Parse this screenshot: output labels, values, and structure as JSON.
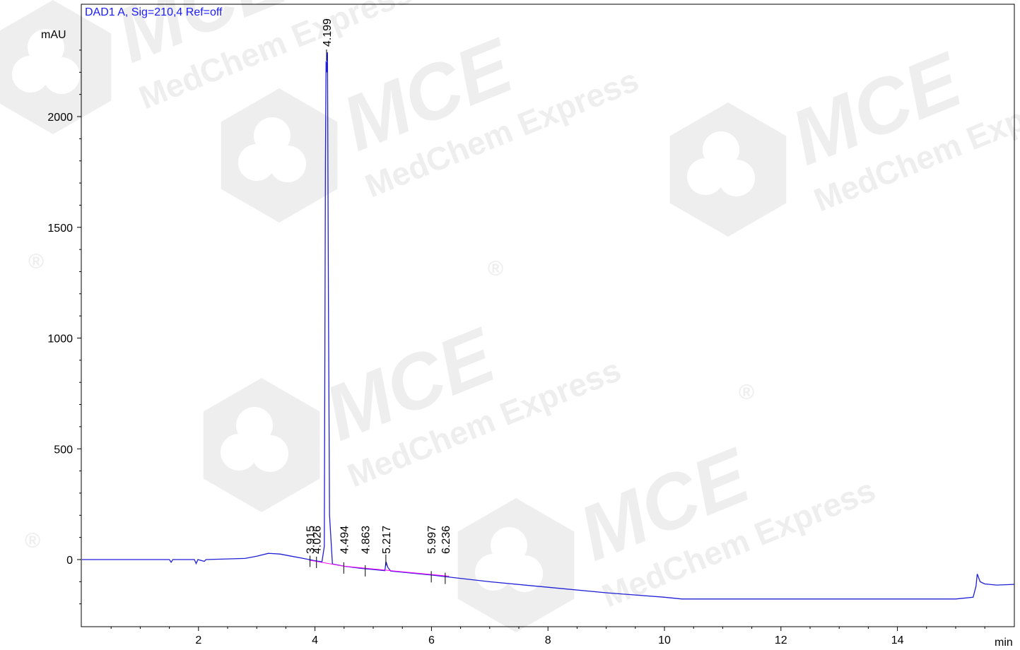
{
  "chart_data": {
    "type": "line",
    "title": "DAD1 A, Sig=210,4 Ref=off",
    "ylabel": "mAU",
    "xlabel": "min",
    "xlim": [
      0,
      16
    ],
    "ylim": [
      -300,
      2400
    ],
    "x_ticks": [
      2,
      4,
      6,
      8,
      10,
      12,
      14
    ],
    "y_ticks": [
      0,
      500,
      1000,
      1500,
      2000
    ],
    "x_tick_labels": [
      "2",
      "4",
      "6",
      "8",
      "10",
      "12",
      "14"
    ],
    "y_tick_labels": [
      "0",
      "500",
      "1000",
      "1500",
      "2000"
    ],
    "grid": false,
    "legend": "none",
    "colors": {
      "signal": "#1f1fd6",
      "baseline": "#ff00ff",
      "title": "#1a1aff",
      "axis": "#000000"
    },
    "series": [
      {
        "values_by_x": [
          [
            0.0,
            0
          ],
          [
            1.5,
            0
          ],
          [
            1.53,
            -12
          ],
          [
            1.56,
            0
          ],
          [
            1.93,
            0
          ],
          [
            1.96,
            -18
          ],
          [
            1.99,
            0
          ],
          [
            2.1,
            -8
          ],
          [
            2.13,
            0
          ],
          [
            2.8,
            5
          ],
          [
            3.0,
            15
          ],
          [
            3.2,
            28
          ],
          [
            3.4,
            25
          ],
          [
            3.6,
            15
          ],
          [
            3.8,
            5
          ],
          [
            4.0,
            -5
          ],
          [
            4.12,
            -10
          ],
          [
            4.16,
            60
          ],
          [
            4.18,
            1800
          ],
          [
            4.19,
            2250
          ],
          [
            4.205,
            2200
          ],
          [
            4.215,
            2290
          ],
          [
            4.23,
            1200
          ],
          [
            4.25,
            200
          ],
          [
            4.3,
            -20
          ],
          [
            4.5,
            -30
          ],
          [
            4.8,
            -40
          ],
          [
            5.2,
            -50
          ],
          [
            5.22,
            -10
          ],
          [
            5.25,
            -35
          ],
          [
            5.3,
            -52
          ],
          [
            6.0,
            -70
          ],
          [
            7.0,
            -100
          ],
          [
            8.0,
            -125
          ],
          [
            9.0,
            -150
          ],
          [
            10.0,
            -170
          ],
          [
            10.3,
            -178
          ],
          [
            11.0,
            -178
          ],
          [
            12.0,
            -178
          ],
          [
            13.0,
            -178
          ],
          [
            14.0,
            -178
          ],
          [
            15.0,
            -178
          ],
          [
            15.3,
            -170
          ],
          [
            15.35,
            -120
          ],
          [
            15.37,
            -65
          ],
          [
            15.42,
            -100
          ],
          [
            15.5,
            -110
          ],
          [
            15.7,
            -115
          ],
          [
            16.0,
            -112
          ]
        ]
      }
    ],
    "baseline_segments": [
      [
        [
          3.9,
          -3
        ],
        [
          4.5,
          -30
        ]
      ],
      [
        [
          4.5,
          -30
        ],
        [
          5.5,
          -55
        ]
      ],
      [
        [
          5.5,
          -55
        ],
        [
          6.3,
          -75
        ]
      ]
    ],
    "peak_labels": [
      "3.915",
      "4.026",
      "4.199",
      "4.494",
      "4.863",
      "5.217",
      "5.997",
      "6.236"
    ],
    "peak_times": [
      3.915,
      4.026,
      4.199,
      4.494,
      4.863,
      5.217,
      5.997,
      6.236
    ],
    "peak_heights": [
      5,
      0,
      2290,
      -25,
      -38,
      10,
      -65,
      -72
    ]
  },
  "watermark": {
    "logo_text": "MCE",
    "company_text": "MedChem Express",
    "reg_mark": "®"
  }
}
